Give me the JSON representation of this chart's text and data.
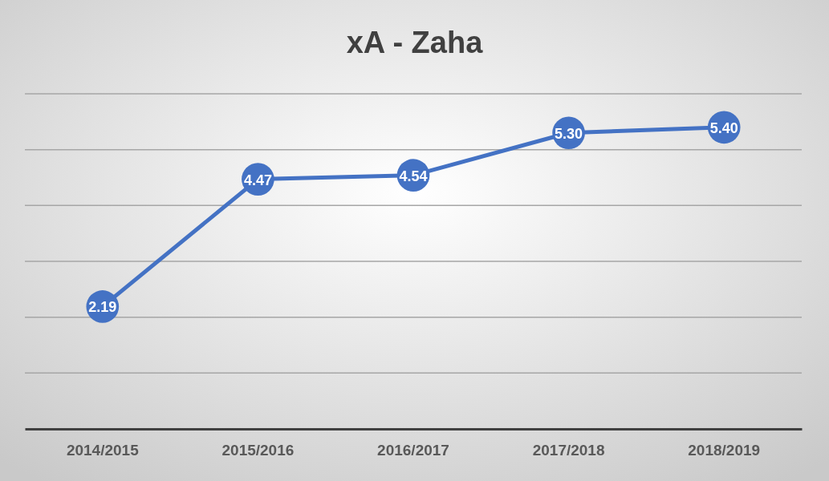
{
  "chart_data": {
    "type": "line",
    "title": "xA - Zaha",
    "categories": [
      "2014/2015",
      "2015/2016",
      "2016/2017",
      "2017/2018",
      "2018/2019"
    ],
    "series": [
      {
        "color": "#4472c4",
        "values": [
          2.19,
          4.47,
          4.54,
          5.3,
          5.4
        ],
        "value_labels": [
          "2.19",
          "4.47",
          "4.54",
          "5.30",
          "5.40"
        ]
      }
    ],
    "ylim": [
      0,
      6
    ],
    "yticks": [
      {
        "value": 0,
        "label": null
      },
      {
        "value": 1,
        "label": null
      },
      {
        "value": 2,
        "label": null
      },
      {
        "value": 3,
        "label": null
      },
      {
        "value": 4,
        "label": null
      },
      {
        "value": 5,
        "label": null
      },
      {
        "value": 6,
        "label": null
      }
    ],
    "grid": "y",
    "tick_labels": "x",
    "marker": "circle",
    "line_style": "solid"
  }
}
